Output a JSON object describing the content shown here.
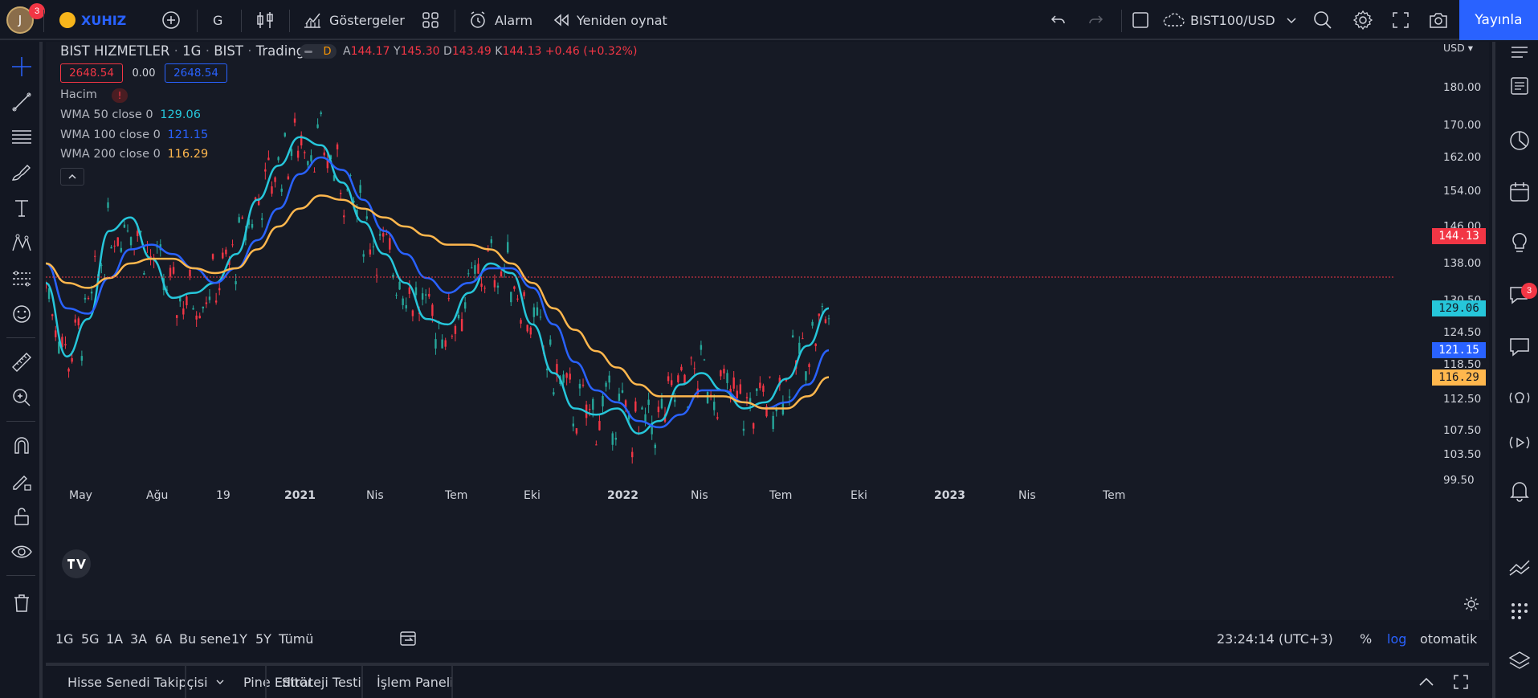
{
  "topbar": {
    "avatar_letter": "J",
    "avatar_badge": "3",
    "symbol": "XUHIZ",
    "interval": "G",
    "indicators_label": "Göstergeler",
    "alarm_label": "Alarm",
    "replay_label": "Yeniden oynat",
    "compare_symbol": "BIST100/USD",
    "publish_label": "Yayınla"
  },
  "legend": {
    "title": "BIST HIZMETLER",
    "interval": "1G",
    "exchange": "BIST",
    "source": "TradingView",
    "d_badge": "D",
    "open_label": "A",
    "open": "144.17",
    "high_label": "Y",
    "high": "145.30",
    "low_label": "D",
    "low": "143.49",
    "close_label": "K",
    "close": "144.13",
    "change": "+0.46 (+0.32%)",
    "bid": "2648.54",
    "spread": "0.00",
    "ask": "2648.54",
    "volume_label": "Hacim",
    "volume_warning": "!",
    "wma50_label": "WMA 50 close 0",
    "wma50_value": "129.06",
    "wma100_label": "WMA 100 close 0",
    "wma100_value": "121.15",
    "wma200_label": "WMA 200 close 0",
    "wma200_value": "116.29"
  },
  "chart_data": {
    "type": "line",
    "currency_label": "USD",
    "y_ticks": [
      "180.00",
      "170.00",
      "162.00",
      "154.00",
      "146.00",
      "138.00",
      "130.50",
      "124.50",
      "118.50",
      "112.50",
      "107.50",
      "103.50",
      "99.50"
    ],
    "x_ticks": [
      "May",
      "Ağu",
      "19",
      "2021",
      "Nis",
      "Tem",
      "Eki",
      "2022",
      "Nis",
      "Tem",
      "Eki",
      "2023",
      "Nis",
      "Tem"
    ],
    "x_tick_bold": [
      "2021",
      "2022",
      "2023"
    ],
    "last_price": "144.13",
    "series": [
      {
        "name": "WMA 50 close 0",
        "color": "#26c6da",
        "last": "129.06",
        "values": [
          134,
          120,
          127,
          145,
          148,
          139,
          131,
          132,
          134,
          140,
          152,
          160,
          167,
          165,
          156,
          147,
          140,
          134,
          127,
          126,
          132,
          138,
          136,
          126,
          117,
          111,
          110,
          111,
          107,
          109,
          115,
          117,
          114,
          111,
          112,
          116,
          122,
          129
        ]
      },
      {
        "name": "WMA 100 close 0",
        "color": "#2962ff",
        "last": "121.15",
        "values": [
          138,
          129,
          128,
          135,
          141,
          142,
          140,
          137,
          134,
          137,
          143,
          150,
          158,
          162,
          159,
          152,
          145,
          140,
          135,
          132,
          134,
          137,
          137,
          133,
          126,
          119,
          114,
          112,
          109,
          108,
          110,
          114,
          114,
          112,
          111,
          112,
          115,
          121.15
        ]
      },
      {
        "name": "WMA 200 close 0",
        "color": "#ffb74d",
        "last": "116.29",
        "values": [
          138,
          134,
          133,
          135,
          138,
          139,
          139,
          137,
          136,
          137,
          141,
          146,
          150,
          153,
          152,
          150,
          148,
          146,
          144,
          142,
          142,
          141,
          138,
          134,
          129,
          125,
          121,
          118,
          115,
          113,
          113,
          113,
          113,
          112,
          111,
          111,
          113,
          116.29
        ]
      }
    ]
  },
  "range_bar": {
    "ranges": [
      "1G",
      "5G",
      "1A",
      "3A",
      "6A",
      "Bu sene",
      "1Y",
      "5Y",
      "Tümü"
    ],
    "clock": "23:24:14 (UTC+3)",
    "percent": "%",
    "log": "log",
    "auto": "otomatik"
  },
  "bottom_tabs": {
    "screener": "Hisse Senedi Takipçisi",
    "pine": "Pine Editör",
    "strategy": "Strateji Testi",
    "trading": "İşlem Paneli"
  },
  "right_badge": "3",
  "colors": {
    "up": "#26a69a",
    "down": "#f23645",
    "accent": "#2962ff"
  }
}
